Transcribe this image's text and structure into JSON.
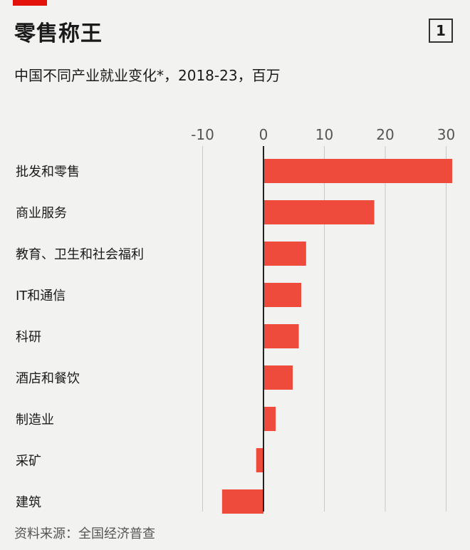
{
  "header": {
    "title": "零售称王",
    "badge": "1",
    "subtitle": "中国不同产业就业变化*，2018-23，百万"
  },
  "footer": {
    "source": "资料来源：全国经济普查"
  },
  "colors": {
    "bar": "#ef4b3c",
    "accent": "#e3120b",
    "grid": "#c8c8c8",
    "zero_line": "#222222"
  },
  "chart_data": {
    "type": "bar",
    "orientation": "horizontal",
    "title": "零售称王",
    "subtitle": "中国不同产业就业变化*，2018-23，百万",
    "categories": [
      "批发和零售",
      "商业服务",
      "教育、卫生和社会福利",
      "IT和通信",
      "科研",
      "酒店和餐饮",
      "制造业",
      "采矿",
      "建筑"
    ],
    "values": [
      31,
      18.2,
      7,
      6.2,
      5.8,
      4.8,
      2,
      -1.2,
      -6.8
    ],
    "xlim": [
      -12,
      32
    ],
    "ticks": [
      -10,
      0,
      10,
      20,
      30
    ],
    "tick_labels": [
      "-10",
      "0",
      "10",
      "20",
      "30"
    ],
    "grid": true,
    "source": "资料来源：全国经济普查"
  }
}
